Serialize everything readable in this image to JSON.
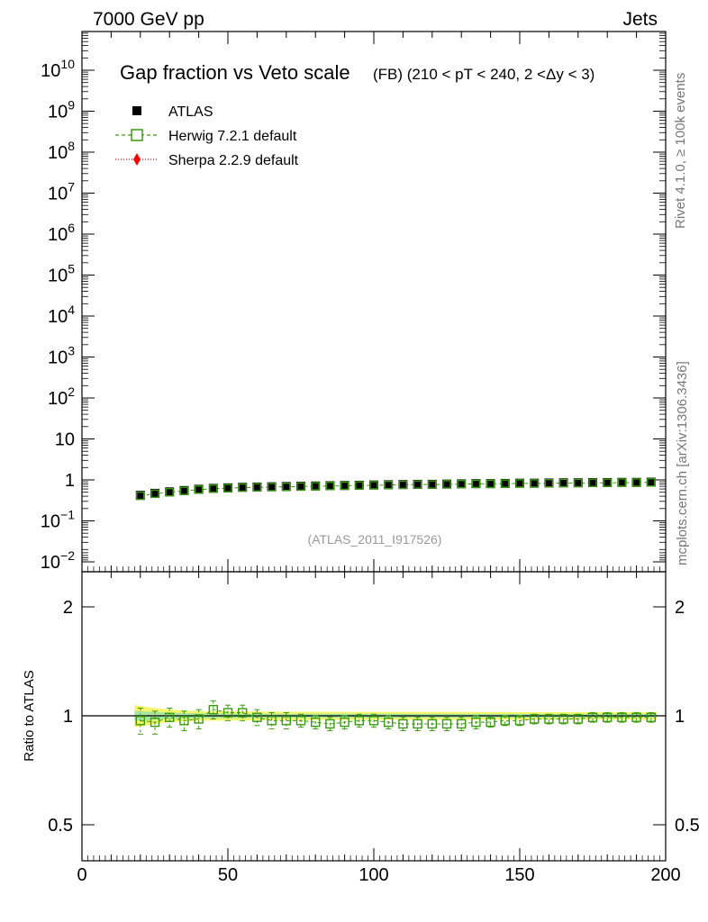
{
  "header": {
    "energy": "7000 GeV pp",
    "process": "Jets",
    "title": "Gap fraction vs Veto scale",
    "subtitle": "(FB) (210 < pT < 240, 2 <Δy < 3)",
    "analysis": "(ATLAS_2011_I917526)",
    "side_rivet": "Rivet 4.1.0, ≥ 100k events",
    "side_mcplots": "mcplots.cern.ch [arXiv:1306.3436]"
  },
  "legend": [
    {
      "label": "ATLAS",
      "color": "#000000",
      "marker": "filled-square"
    },
    {
      "label": "Herwig 7.2.1 default",
      "color": "#3a9a10",
      "marker": "open-square-dashed"
    },
    {
      "label": "Sherpa 2.2.9 default",
      "color": "#ff0000",
      "marker": "diamond-dotted"
    }
  ],
  "chart_data": [
    {
      "type": "scatter",
      "panel": "main",
      "yscale": "log",
      "xlim": [
        0,
        200
      ],
      "ylim": [
        0.006,
        100000000000.0
      ],
      "ytick_labels": [
        "10^-2",
        "10^-1",
        "1",
        "10",
        "10^2",
        "10^3",
        "10^4",
        "10^5",
        "10^6",
        "10^7",
        "10^8",
        "10^9",
        "10^10"
      ],
      "x": [
        20,
        25,
        30,
        35,
        40,
        45,
        50,
        55,
        60,
        65,
        70,
        75,
        80,
        85,
        90,
        95,
        100,
        105,
        110,
        115,
        120,
        125,
        130,
        135,
        140,
        145,
        150,
        155,
        160,
        165,
        170,
        175,
        180,
        185,
        190,
        195
      ],
      "series": [
        {
          "name": "ATLAS",
          "values": [
            0.42,
            0.47,
            0.51,
            0.55,
            0.59,
            0.62,
            0.64,
            0.66,
            0.67,
            0.68,
            0.69,
            0.7,
            0.71,
            0.72,
            0.73,
            0.74,
            0.75,
            0.76,
            0.77,
            0.78,
            0.78,
            0.79,
            0.8,
            0.81,
            0.81,
            0.82,
            0.83,
            0.83,
            0.84,
            0.85,
            0.85,
            0.86,
            0.86,
            0.87,
            0.87,
            0.88
          ]
        },
        {
          "name": "Herwig 7.2.1 default",
          "values": [
            0.41,
            0.46,
            0.5,
            0.54,
            0.58,
            0.61,
            0.63,
            0.65,
            0.66,
            0.67,
            0.68,
            0.69,
            0.7,
            0.71,
            0.72,
            0.73,
            0.74,
            0.75,
            0.76,
            0.77,
            0.77,
            0.78,
            0.79,
            0.8,
            0.8,
            0.81,
            0.82,
            0.82,
            0.83,
            0.84,
            0.84,
            0.85,
            0.85,
            0.86,
            0.86,
            0.87
          ]
        }
      ]
    },
    {
      "type": "scatter",
      "panel": "ratio",
      "ylabel": "Ratio to ATLAS",
      "xlim": [
        0,
        200
      ],
      "ylim": [
        0.4,
        2.3
      ],
      "xtick_labels": [
        "0",
        "50",
        "100",
        "150",
        "200"
      ],
      "ytick_labels": [
        "0.5",
        "1",
        "2"
      ],
      "x": [
        20,
        25,
        30,
        35,
        40,
        45,
        50,
        55,
        60,
        65,
        70,
        75,
        80,
        85,
        90,
        95,
        100,
        105,
        110,
        115,
        120,
        125,
        130,
        135,
        140,
        145,
        150,
        155,
        160,
        165,
        170,
        175,
        180,
        185,
        190,
        195
      ],
      "series": [
        {
          "name": "Herwig 7.2.1 default",
          "values": [
            0.97,
            0.96,
            0.99,
            0.97,
            0.98,
            1.04,
            1.02,
            1.02,
            0.99,
            0.97,
            0.97,
            0.97,
            0.96,
            0.95,
            0.96,
            0.97,
            0.97,
            0.96,
            0.95,
            0.95,
            0.95,
            0.95,
            0.95,
            0.96,
            0.96,
            0.97,
            0.97,
            0.98,
            0.98,
            0.98,
            0.98,
            0.99,
            0.99,
            0.99,
            0.99,
            0.99
          ],
          "err": [
            0.08,
            0.07,
            0.06,
            0.06,
            0.06,
            0.06,
            0.05,
            0.05,
            0.05,
            0.05,
            0.05,
            0.04,
            0.04,
            0.04,
            0.04,
            0.04,
            0.04,
            0.04,
            0.04,
            0.04,
            0.04,
            0.04,
            0.04,
            0.04,
            0.03,
            0.03,
            0.03,
            0.03,
            0.03,
            0.03,
            0.03,
            0.03,
            0.03,
            0.03,
            0.03,
            0.03
          ]
        }
      ],
      "band_x": [
        18,
        20,
        25,
        30,
        35,
        40,
        45,
        50,
        60,
        80,
        100,
        150,
        197
      ],
      "band_total": [
        0.07,
        0.065,
        0.05,
        0.04,
        0.035,
        0.03,
        0.03,
        0.03,
        0.028,
        0.026,
        0.025,
        0.024,
        0.024
      ],
      "band_stat": [
        0.03,
        0.03,
        0.025,
        0.02,
        0.018,
        0.016,
        0.015,
        0.015,
        0.014,
        0.013,
        0.013,
        0.012,
        0.012
      ]
    }
  ]
}
